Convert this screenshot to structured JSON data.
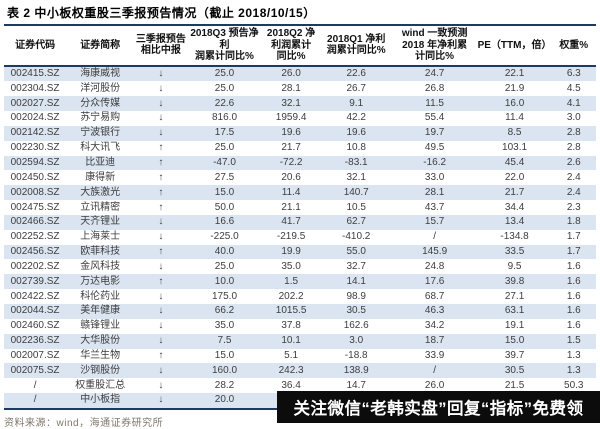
{
  "title": "表 2 中小板权重股三季报预告情况（截止 2018/10/15）",
  "source_note": "资料来源：wind，海通证券研究所",
  "banner": {
    "text": "关注微信“老韩实盘”回复“指标”免费领",
    "bg": "#0c0c0c",
    "fg": "#ffffff"
  },
  "colors": {
    "accent_navy": "#1f3a60",
    "stripe_blue": "#dbe5f1",
    "text": "#3d3d3d",
    "source": "#80786d"
  },
  "table": {
    "columns": [
      {
        "key": "code",
        "label": "证券代码"
      },
      {
        "key": "name",
        "label": "证券简称"
      },
      {
        "key": "trend",
        "label": "三季报预告\n相比中报"
      },
      {
        "key": "q3",
        "label": "2018Q3 预告净利\n润累计同比%"
      },
      {
        "key": "q2",
        "label": "2018Q2 净\n利润累计\n同比%"
      },
      {
        "key": "q1",
        "label": "2018Q1 净利\n润累计同比%"
      },
      {
        "key": "wind",
        "label": "wind 一致预测\n2018 年净利累\n计同比%"
      },
      {
        "key": "pe",
        "label": "PE（TTM，倍）"
      },
      {
        "key": "weight",
        "label": "权重%"
      }
    ],
    "rows": [
      [
        "002415.SZ",
        "海康威视",
        "↓",
        "25.0",
        "26.0",
        "22.6",
        "24.7",
        "22.1",
        "6.3"
      ],
      [
        "002304.SZ",
        "洋河股份",
        "↓",
        "25.0",
        "28.1",
        "26.7",
        "26.8",
        "21.9",
        "4.5"
      ],
      [
        "002027.SZ",
        "分众传媒",
        "↓",
        "22.6",
        "32.1",
        "9.1",
        "11.5",
        "16.0",
        "4.1"
      ],
      [
        "002024.SZ",
        "苏宁易购",
        "↓",
        "816.0",
        "1959.4",
        "42.2",
        "55.4",
        "11.4",
        "3.0"
      ],
      [
        "002142.SZ",
        "宁波银行",
        "↓",
        "17.5",
        "19.6",
        "19.6",
        "19.7",
        "8.5",
        "2.8"
      ],
      [
        "002230.SZ",
        "科大讯飞",
        "↑",
        "25.0",
        "21.7",
        "10.8",
        "49.5",
        "103.1",
        "2.8"
      ],
      [
        "002594.SZ",
        "比亚迪",
        "↑",
        "-47.0",
        "-72.2",
        "-83.1",
        "-16.2",
        "45.4",
        "2.6"
      ],
      [
        "002450.SZ",
        "康得新",
        "↑",
        "27.5",
        "20.6",
        "32.1",
        "33.0",
        "22.0",
        "2.4"
      ],
      [
        "002008.SZ",
        "大族激光",
        "↑",
        "15.0",
        "11.4",
        "140.7",
        "28.1",
        "21.7",
        "2.4"
      ],
      [
        "002475.SZ",
        "立讯精密",
        "↑",
        "50.0",
        "21.1",
        "10.5",
        "43.7",
        "34.4",
        "2.3"
      ],
      [
        "002466.SZ",
        "天齐锂业",
        "↓",
        "16.6",
        "41.7",
        "62.7",
        "15.7",
        "13.4",
        "1.8"
      ],
      [
        "002252.SZ",
        "上海莱士",
        "↓",
        "-225.0",
        "-219.5",
        "-410.2",
        "/",
        "-134.8",
        "1.7"
      ],
      [
        "002456.SZ",
        "欧菲科技",
        "↑",
        "40.0",
        "19.9",
        "55.0",
        "145.9",
        "33.5",
        "1.7"
      ],
      [
        "002202.SZ",
        "金风科技",
        "↓",
        "25.0",
        "35.0",
        "32.7",
        "24.8",
        "9.5",
        "1.6"
      ],
      [
        "002739.SZ",
        "万达电影",
        "↑",
        "10.0",
        "1.5",
        "14.1",
        "17.6",
        "39.8",
        "1.6"
      ],
      [
        "002422.SZ",
        "科伦药业",
        "↓",
        "175.0",
        "202.2",
        "98.9",
        "68.7",
        "27.1",
        "1.6"
      ],
      [
        "002044.SZ",
        "美年健康",
        "↓",
        "66.2",
        "1015.5",
        "30.5",
        "46.3",
        "63.1",
        "1.6"
      ],
      [
        "002460.SZ",
        "赣锋锂业",
        "↓",
        "35.0",
        "37.8",
        "162.6",
        "34.2",
        "19.1",
        "1.6"
      ],
      [
        "002236.SZ",
        "大华股份",
        "↓",
        "7.5",
        "10.1",
        "3.0",
        "18.7",
        "15.0",
        "1.5"
      ],
      [
        "002007.SZ",
        "华兰生物",
        "↑",
        "15.0",
        "5.1",
        "-18.8",
        "33.9",
        "39.7",
        "1.3"
      ],
      [
        "002075.SZ",
        "沙钢股份",
        "↓",
        "160.0",
        "242.3",
        "138.9",
        "/",
        "30.5",
        "1.3"
      ],
      [
        "/",
        "权重股汇总",
        "↓",
        "28.2",
        "36.4",
        "14.7",
        "26.0",
        "21.5",
        "50.3"
      ],
      [
        "/",
        "中小板指",
        "↓",
        "20.0",
        "",
        "",
        "",
        "",
        ""
      ]
    ]
  }
}
